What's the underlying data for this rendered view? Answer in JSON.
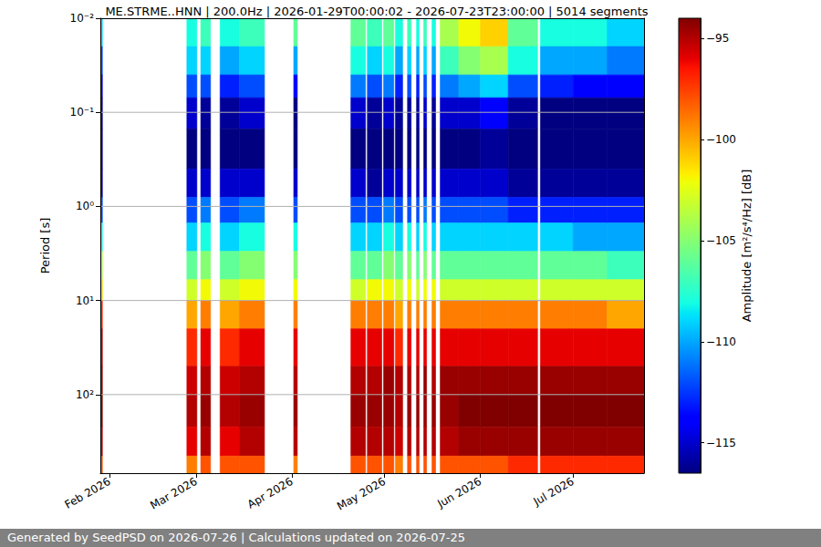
{
  "chart_data": {
    "type": "heatmap",
    "title": "ME.STRME..HNN | 200.0Hz | 2026-01-29T00:00:02 - 2026-07-23T23:00:00 | 5014 segments",
    "y_label": "Period [s]",
    "footer": "Generated by SeedPSD on 2026-07-26 | Calculations updated on 2026-07-25",
    "log": "y",
    "grid": true,
    "xlim": [
      "2026-01-29T00:00:02",
      "2026-07-23T23:00:00"
    ],
    "xticks": [
      {
        "value": "2026-02-01",
        "label": "Feb 2026"
      },
      {
        "value": "2026-03-01",
        "label": "Mar 2026"
      },
      {
        "value": "2026-04-01",
        "label": "Apr 2026"
      },
      {
        "value": "2026-05-01",
        "label": "May 2026"
      },
      {
        "value": "2026-06-01",
        "label": "Jun 2026"
      },
      {
        "value": "2026-07-01",
        "label": "Jul 2026"
      }
    ],
    "ylim": [
      0.01,
      684
    ],
    "yticks": [
      {
        "value": 0.01,
        "label": "10⁻²"
      },
      {
        "value": 0.1,
        "label": "10⁻¹"
      },
      {
        "value": 1,
        "label": "10⁰"
      },
      {
        "value": 10,
        "label": "10¹"
      },
      {
        "value": 100,
        "label": "10²"
      }
    ],
    "colorbar": {
      "label": "Amplitude [m²/s⁴/Hz] [dB]",
      "range": [
        -116.5,
        -94
      ],
      "ticks": [
        {
          "value": -115,
          "label": "−115"
        },
        {
          "value": -110,
          "label": "−110"
        },
        {
          "value": -105,
          "label": "−105"
        },
        {
          "value": -100,
          "label": "−100"
        },
        {
          "value": -95,
          "label": "−95"
        }
      ]
    },
    "period_edges": [
      0.01,
      0.02,
      0.04,
      0.07,
      0.15,
      0.4,
      0.8,
      1.5,
      3,
      6,
      10,
      20,
      50,
      100,
      220,
      450,
      684
    ],
    "columns": [
      {
        "start": "2026-01-29T00:00:02",
        "end": "2026-01-29T16:00:00",
        "values": [
          -109,
          -112,
          -115,
          -116.5,
          -116.5,
          -116,
          -112,
          -108,
          -104,
          -101,
          -97,
          -95,
          -94.5,
          -94,
          -95,
          -98
        ]
      },
      {
        "start": "2026-02-26T00:00:00",
        "end": "2026-03-01T06:00:00",
        "values": [
          -108,
          -109,
          -112,
          -115,
          -116.5,
          -115,
          -112,
          -109,
          -106,
          -103,
          -100,
          -97,
          -95.5,
          -95,
          -96,
          -99
        ]
      },
      {
        "start": "2026-03-02T12:00:00",
        "end": "2026-03-05T16:00:00",
        "values": [
          -107,
          -109,
          -112,
          -116,
          -116.5,
          -115,
          -111,
          -108,
          -105,
          -102,
          -99,
          -96,
          -95,
          -94.5,
          -95,
          -98
        ]
      },
      {
        "start": "2026-03-08T18:00:00",
        "end": "2026-03-15T00:00:00",
        "values": [
          -108,
          -110,
          -113,
          -116,
          -116.5,
          -115,
          -112,
          -109,
          -106,
          -103,
          -100,
          -97,
          -95.5,
          -95,
          -96,
          -98
        ]
      },
      {
        "start": "2026-03-15T00:00:00",
        "end": "2026-03-23T03:00:00",
        "values": [
          -107,
          -109,
          -112,
          -115,
          -116.5,
          -115,
          -111,
          -108,
          -105,
          -102,
          -99,
          -96,
          -95,
          -94.5,
          -95,
          -98
        ]
      },
      {
        "start": "2026-04-01T14:00:00",
        "end": "2026-04-02T18:00:00",
        "values": [
          -106,
          -110,
          -114,
          -116.5,
          -116.5,
          -115,
          -112,
          -108,
          -105,
          -102,
          -99,
          -96,
          -95,
          -94.5,
          -95,
          -99
        ]
      },
      {
        "start": "2026-04-20T02:00:00",
        "end": "2026-04-24T20:00:00",
        "values": [
          -106,
          -108,
          -111,
          -115,
          -116.5,
          -115,
          -112,
          -109,
          -106,
          -103,
          -99,
          -96,
          -95,
          -94.5,
          -95,
          -98
        ]
      },
      {
        "start": "2026-04-25T10:00:00",
        "end": "2026-04-30T02:00:00",
        "values": [
          -107,
          -109,
          -112,
          -116,
          -116.5,
          -116,
          -112,
          -109,
          -106,
          -102,
          -99,
          -96,
          -95,
          -94.5,
          -95,
          -98
        ]
      },
      {
        "start": "2026-04-30T16:00:00",
        "end": "2026-05-04T00:00:00",
        "values": [
          -106,
          -108,
          -111,
          -115,
          -116.5,
          -115,
          -111,
          -108,
          -105,
          -102,
          -99,
          -96,
          -94.5,
          -94.5,
          -95,
          -98
        ]
      },
      {
        "start": "2026-05-04T12:00:00",
        "end": "2026-05-06T20:00:00",
        "values": [
          -108,
          -110,
          -113,
          -116,
          -116.5,
          -115,
          -112,
          -109,
          -106,
          -103,
          -100,
          -97,
          -95,
          -95,
          -95.5,
          -99
        ]
      },
      {
        "start": "2026-05-08T10:00:00",
        "end": "2026-05-09T14:00:00",
        "values": [
          -107,
          -109,
          -112,
          -116,
          -116.5,
          -115,
          -112,
          -108,
          -105,
          -102,
          -99,
          -96,
          -95,
          -94.5,
          -95,
          -98
        ]
      },
      {
        "start": "2026-05-11T08:00:00",
        "end": "2026-05-12T04:00:00",
        "values": [
          -108,
          -110,
          -113,
          -116,
          -116.5,
          -115,
          -112,
          -109,
          -106,
          -103,
          -99,
          -96,
          -95,
          -94.5,
          -95,
          -98
        ]
      },
      {
        "start": "2026-05-13T16:00:00",
        "end": "2026-05-14T14:00:00",
        "values": [
          -107,
          -109,
          -112,
          -115,
          -116.5,
          -115,
          -111,
          -108,
          -105,
          -102,
          -99,
          -96,
          -94.5,
          -94.5,
          -95,
          -98
        ]
      },
      {
        "start": "2026-05-16T08:00:00",
        "end": "2026-05-17T12:00:00",
        "values": [
          -108,
          -110,
          -113,
          -116,
          -116.5,
          -115,
          -112,
          -109,
          -106,
          -102,
          -99,
          -96,
          -95,
          -94.5,
          -95,
          -98
        ]
      },
      {
        "start": "2026-05-19T00:00:00",
        "end": "2026-05-25T00:00:00",
        "values": [
          -104,
          -107,
          -111,
          -115,
          -116.5,
          -115,
          -112,
          -109,
          -106,
          -103,
          -99,
          -96,
          -94.5,
          -94.5,
          -95,
          -98
        ]
      },
      {
        "start": "2026-05-25T00:00:00",
        "end": "2026-06-01T00:00:00",
        "values": [
          -102,
          -105,
          -110,
          -115,
          -116.5,
          -115,
          -112,
          -109,
          -106,
          -103,
          -99,
          -96,
          -94.5,
          -94,
          -94.5,
          -98
        ]
      },
      {
        "start": "2026-06-01T00:00:00",
        "end": "2026-06-10T00:00:00",
        "values": [
          -101,
          -104,
          -109,
          -114,
          -116,
          -115,
          -112,
          -109,
          -106,
          -103,
          -99,
          -96,
          -94.5,
          -94,
          -94.5,
          -98
        ]
      },
      {
        "start": "2026-06-10T00:00:00",
        "end": "2026-06-19T12:00:00",
        "values": [
          -106,
          -108,
          -112,
          -116,
          -116.5,
          -116,
          -113,
          -109,
          -106,
          -103,
          -99,
          -96,
          -94.5,
          -94,
          -94.5,
          -97
        ]
      },
      {
        "start": "2026-06-20T10:00:00",
        "end": "2026-07-01T00:00:00",
        "values": [
          -108,
          -110,
          -113,
          -116.5,
          -116.5,
          -116,
          -113,
          -109,
          -106,
          -103,
          -99,
          -96,
          -94.5,
          -94,
          -94.5,
          -97
        ]
      },
      {
        "start": "2026-07-01T00:00:00",
        "end": "2026-07-12T00:00:00",
        "values": [
          -108,
          -110,
          -114,
          -116.5,
          -116.5,
          -116,
          -113,
          -110,
          -106,
          -103,
          -99,
          -96,
          -94.5,
          -94,
          -94.5,
          -97
        ]
      },
      {
        "start": "2026-07-12T00:00:00",
        "end": "2026-07-23T23:00:00",
        "values": [
          -109,
          -111,
          -114,
          -116.5,
          -116.5,
          -116,
          -113,
          -110,
          -107,
          -103,
          -100,
          -96,
          -94.5,
          -94,
          -94.5,
          -97
        ]
      }
    ]
  }
}
